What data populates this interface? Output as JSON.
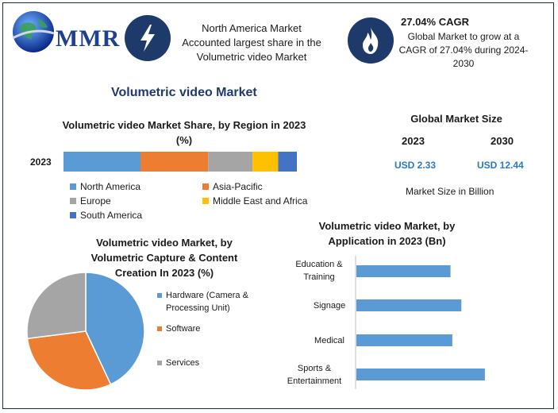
{
  "brand": {
    "name": "MMR"
  },
  "header": {
    "info_text": "North America Market Accounted largest share in the Volumetric video Market",
    "cagr_title": "27.04% CAGR",
    "cagr_text": "Global Market to grow at a CAGR of 27.04% during 2024-2030",
    "icons": [
      "lightning-icon",
      "flame-icon"
    ]
  },
  "main_title": "Volumetric video Market",
  "global_market": {
    "title": "Global Market Size",
    "years": [
      "2023",
      "2030"
    ],
    "values": [
      "USD 2.33",
      "USD 12.44"
    ],
    "note": "Market Size in Billion"
  },
  "chart_data": [
    {
      "type": "bar",
      "orientation": "horizontal-stacked",
      "title": "Volumetric video Market Share, by Region in 2023 (%)",
      "categories": [
        "2023"
      ],
      "series": [
        {
          "name": "North America",
          "values": [
            33
          ],
          "color": "#5b9bd5"
        },
        {
          "name": "Asia-Pacific",
          "values": [
            29
          ],
          "color": "#ed7d31"
        },
        {
          "name": "Europe",
          "values": [
            19
          ],
          "color": "#a5a5a5"
        },
        {
          "name": "Middle East and Africa",
          "values": [
            11
          ],
          "color": "#ffc000"
        },
        {
          "name": "South America",
          "values": [
            8
          ],
          "color": "#4472c4"
        }
      ],
      "legend": "bottom"
    },
    {
      "type": "pie",
      "title": "Volumetric video Market, by Volumetric Capture & Content Creation In 2023 (%)",
      "labels": [
        "Hardware (Camera & Processing Unit)",
        "Software",
        "Services"
      ],
      "values": [
        43,
        30,
        27
      ],
      "colors": [
        "#5b9bd5",
        "#ed7d31",
        "#a5a5a5"
      ],
      "legend": "right"
    },
    {
      "type": "bar",
      "orientation": "horizontal",
      "title": "Volumetric video Market, by Application in 2023 (Bn)",
      "categories": [
        "Education & Training",
        "Signage",
        "Medical",
        "Sports & Entertainment"
      ],
      "values": [
        0.52,
        0.58,
        0.53,
        0.71
      ],
      "color": "#5b9bd5"
    }
  ]
}
